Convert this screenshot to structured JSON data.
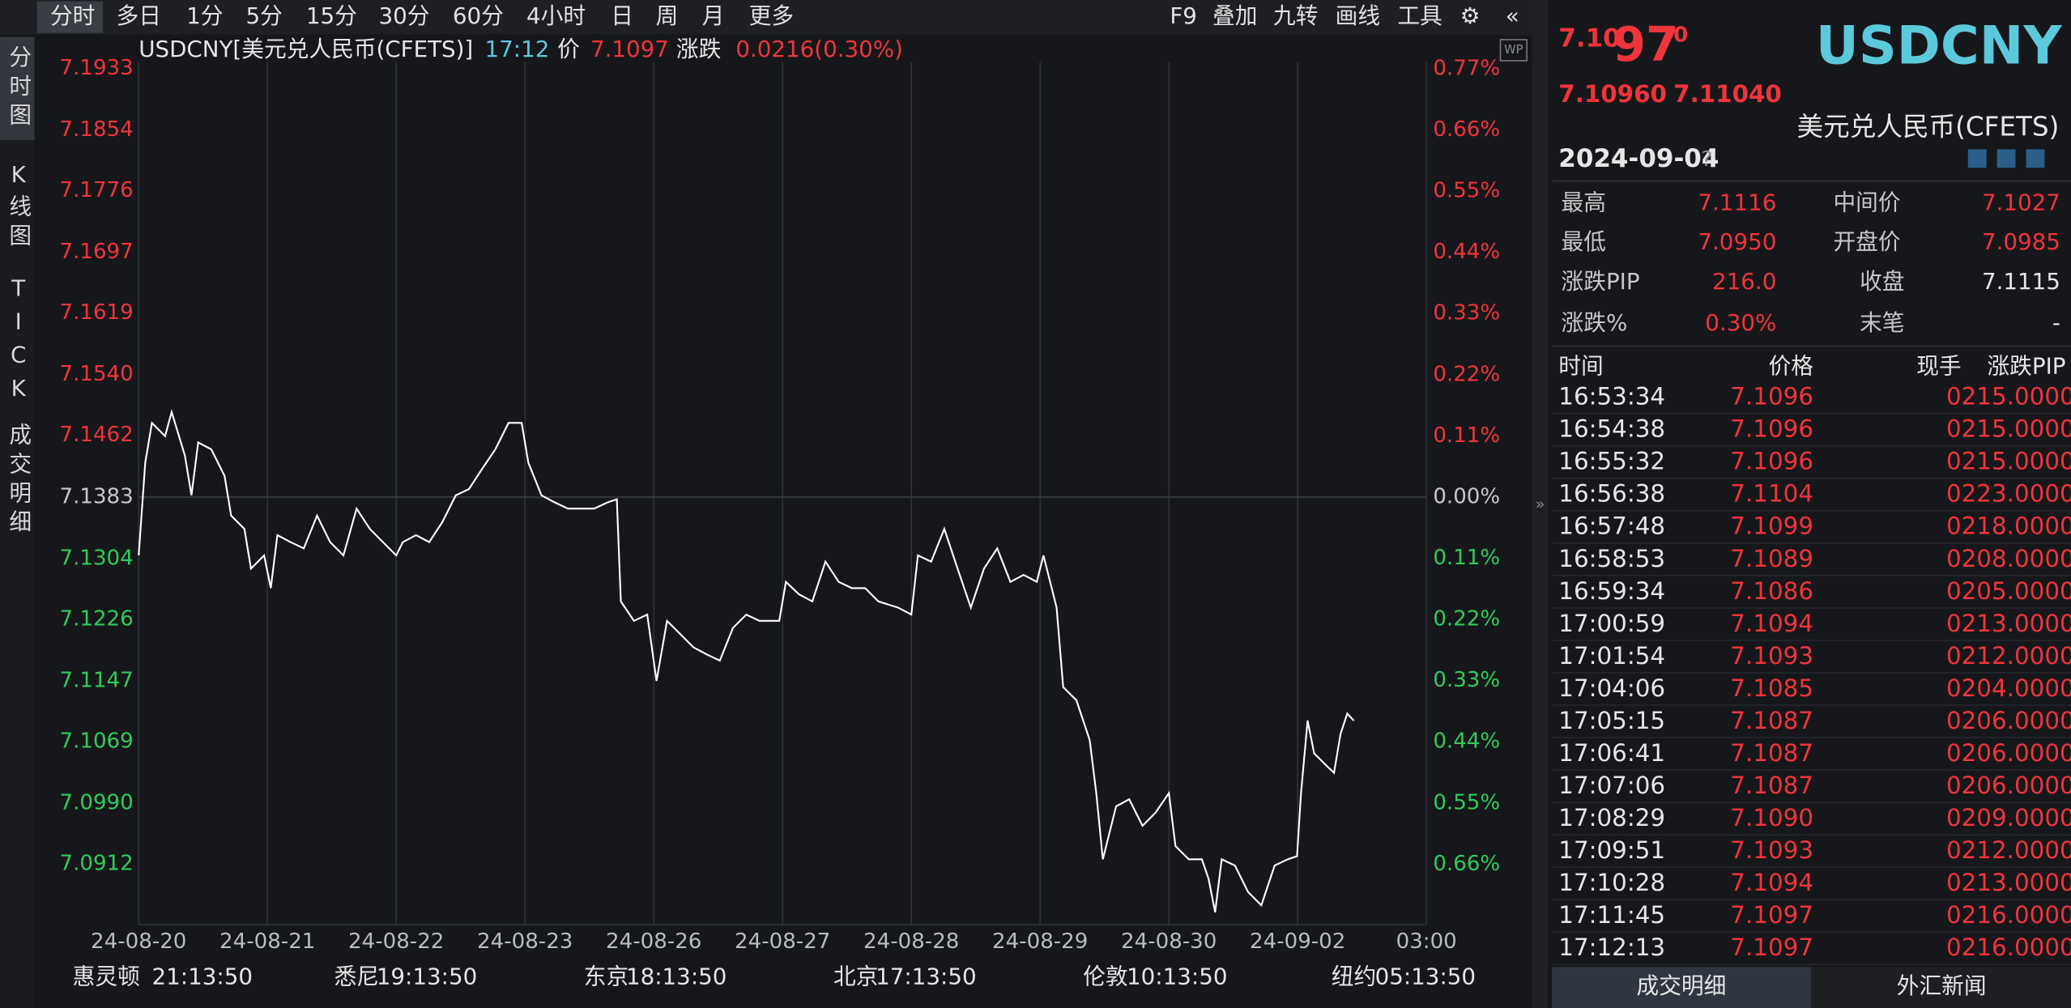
{
  "toolbar": {
    "left": [
      "分时",
      "多日",
      "1分",
      "5分",
      "15分",
      "30分",
      "60分",
      "4小时",
      "日",
      "周",
      "月",
      "更多"
    ],
    "right": [
      "F9",
      "叠加",
      "九转",
      "画线",
      "工具"
    ]
  },
  "side_tabs": [
    "分时图",
    "K线图",
    "TICK",
    "成交明细"
  ],
  "chart_header": {
    "symbol": "USDCNY[美元兑人民币(CFETS)]",
    "time": "17:12",
    "price_label": "价",
    "price": "7.1097",
    "change_label": "涨跌",
    "change": "0.0216(0.30%)"
  },
  "chart_data": {
    "type": "line",
    "up_color": "#f0343c",
    "down_color": "#2ecc5a",
    "flat_color": "#c8c8c8",
    "xlim": [
      0,
      10
    ],
    "xticks": [
      {
        "value": 0,
        "label": "24-08-20"
      },
      {
        "value": 1,
        "label": "24-08-21"
      },
      {
        "value": 2,
        "label": "24-08-22"
      },
      {
        "value": 3,
        "label": "24-08-23"
      },
      {
        "value": 4,
        "label": "24-08-26"
      },
      {
        "value": 5,
        "label": "24-08-27"
      },
      {
        "value": 6,
        "label": "24-08-28"
      },
      {
        "value": 7,
        "label": "24-08-29"
      },
      {
        "value": 8,
        "label": "24-08-30"
      },
      {
        "value": 9,
        "label": "24-09-02"
      },
      {
        "value": 10,
        "label": "03:00"
      }
    ],
    "ylim": [
      7.0834,
      7.1941
    ],
    "yticks": [
      7.1933,
      7.1854,
      7.1776,
      7.1697,
      7.1619,
      {
        "value": 7.154,
        "label": "7.1540"
      },
      7.1462,
      7.1383,
      7.1304,
      7.1226,
      7.1147,
      7.1069,
      {
        "value": 7.099,
        "label": "7.0990"
      },
      7.0912
    ],
    "y2lim": [
      -0.769,
      0.782
    ],
    "y2ticks": [
      {
        "value": 0.77,
        "label": "0.77%"
      },
      {
        "value": 0.66,
        "label": "0.66%"
      },
      {
        "value": 0.55,
        "label": "0.55%"
      },
      {
        "value": 0.44,
        "label": "0.44%"
      },
      {
        "value": 0.33,
        "label": "0.33%"
      },
      {
        "value": 0.22,
        "label": "0.22%"
      },
      {
        "value": 0.11,
        "label": "0.11%"
      },
      {
        "value": 0,
        "label": "0.00%"
      },
      {
        "value": -0.11,
        "label": "0.11%"
      },
      {
        "value": -0.22,
        "label": "0.22%"
      },
      {
        "value": -0.33,
        "label": "0.33%"
      },
      {
        "value": -0.44,
        "label": "0.44%"
      },
      {
        "value": -0.55,
        "label": "0.55%"
      },
      {
        "value": -0.66,
        "label": "0.66%"
      }
    ],
    "grid": true,
    "series": [
      {
        "color": "#ffffff",
        "x": [
          0,
          0.051,
          0.103,
          0.205,
          0.256,
          0.359,
          0.41,
          0.462,
          0.564,
          0.667,
          0.718,
          0.821,
          0.872,
          0.974,
          1.026,
          1.077,
          1.179,
          1.282,
          1.385,
          1.487,
          1.59,
          1.692,
          1.795,
          1.897,
          2.0,
          2.051,
          2.154,
          2.256,
          2.359,
          2.462,
          2.564,
          2.667,
          2.769,
          2.872,
          2.974,
          3.026,
          3.128,
          3.231,
          3.333,
          3.436,
          3.538,
          3.641,
          3.713,
          3.744,
          3.846,
          3.949,
          4.021,
          4.103,
          4.205,
          4.308,
          4.41,
          4.513,
          4.615,
          4.718,
          4.821,
          4.974,
          5.026,
          5.128,
          5.231,
          5.333,
          5.436,
          5.538,
          5.641,
          5.744,
          5.897,
          6.0,
          6.051,
          6.154,
          6.256,
          6.359,
          6.462,
          6.564,
          6.667,
          6.769,
          6.872,
          6.974,
          7.026,
          7.128,
          7.179,
          7.282,
          7.385,
          7.436,
          7.487,
          7.59,
          7.692,
          7.795,
          7.897,
          8.0,
          8.051,
          8.154,
          8.256,
          8.308,
          8.359,
          8.41,
          8.513,
          8.615,
          8.718,
          8.821,
          8.923,
          8.995,
          9.026,
          9.077,
          9.128,
          9.231,
          9.282,
          9.333,
          9.385,
          9.436
        ],
        "values": [
          7.1308,
          7.1427,
          7.1478,
          7.1461,
          7.1492,
          7.1436,
          7.1385,
          7.1453,
          7.1444,
          7.141,
          7.1359,
          7.1342,
          7.1291,
          7.1308,
          7.1266,
          7.1334,
          7.1325,
          7.1317,
          7.1359,
          7.1325,
          7.1308,
          7.1368,
          7.1342,
          7.1325,
          7.1308,
          7.1325,
          7.1334,
          7.1325,
          7.1351,
          7.1385,
          7.1393,
          7.1419,
          7.1444,
          7.1478,
          7.1478,
          7.1427,
          7.1385,
          7.1376,
          7.1368,
          7.1368,
          7.1368,
          7.1376,
          7.138,
          7.1249,
          7.1224,
          7.1232,
          7.1147,
          7.1224,
          7.1207,
          7.119,
          7.1181,
          7.1173,
          7.1215,
          7.1232,
          7.1224,
          7.1224,
          7.1274,
          7.1258,
          7.1249,
          7.13,
          7.1274,
          7.1266,
          7.1266,
          7.1249,
          7.1241,
          7.1232,
          7.1308,
          7.13,
          7.1342,
          7.1291,
          7.1241,
          7.1291,
          7.1317,
          7.1274,
          7.1283,
          7.1274,
          7.1308,
          7.1241,
          7.1139,
          7.1122,
          7.1071,
          7.1003,
          7.0918,
          7.0986,
          7.0995,
          7.0961,
          7.0978,
          7.1003,
          7.0935,
          7.0918,
          7.0918,
          7.0893,
          7.085,
          7.0918,
          7.091,
          7.0876,
          7.0859,
          7.091,
          7.0918,
          7.0922,
          7.1003,
          7.1096,
          7.1054,
          7.1037,
          7.1029,
          7.1079,
          7.1105,
          7.1096
        ]
      }
    ]
  },
  "world_clocks": [
    [
      "惠灵顿",
      "21:13:50"
    ],
    [
      "悉尼",
      "19:13:50"
    ],
    [
      "东京",
      "18:13:50"
    ],
    [
      "北京",
      "17:13:50"
    ],
    [
      "伦敦",
      "10:13:50"
    ],
    [
      "纽约",
      "05:13:50"
    ]
  ],
  "quote": {
    "price_head": "7.10",
    "price_big": "97",
    "price_tail": "0",
    "bid": "7.10960",
    "ask": "7.11040",
    "symbol": "USDCNY",
    "name": "美元兑人民币(CFETS)",
    "date": "2024-09-04",
    "help": "?"
  },
  "stats": [
    [
      "最高",
      "7.1116",
      "中间价",
      "7.1027"
    ],
    [
      "最低",
      "7.0950",
      "开盘价",
      "7.0985"
    ],
    [
      "涨跌PIP",
      "216.0",
      "收盘",
      "7.1115"
    ],
    [
      "涨跌%",
      "0.30%",
      "末笔",
      "-"
    ]
  ],
  "trades": {
    "header": [
      "时间",
      "价格",
      "现手",
      "涨跌PIP"
    ],
    "rows": [
      [
        "16:53:34",
        "7.1096",
        "0",
        "215.0000"
      ],
      [
        "16:54:38",
        "7.1096",
        "0",
        "215.0000"
      ],
      [
        "16:55:32",
        "7.1096",
        "0",
        "215.0000"
      ],
      [
        "16:56:38",
        "7.1104",
        "0",
        "223.0000"
      ],
      [
        "16:57:48",
        "7.1099",
        "0",
        "218.0000"
      ],
      [
        "16:58:53",
        "7.1089",
        "0",
        "208.0000"
      ],
      [
        "16:59:34",
        "7.1086",
        "0",
        "205.0000"
      ],
      [
        "17:00:59",
        "7.1094",
        "0",
        "213.0000"
      ],
      [
        "17:01:54",
        "7.1093",
        "0",
        "212.0000"
      ],
      [
        "17:04:06",
        "7.1085",
        "0",
        "204.0000"
      ],
      [
        "17:05:15",
        "7.1087",
        "0",
        "206.0000"
      ],
      [
        "17:06:41",
        "7.1087",
        "0",
        "206.0000"
      ],
      [
        "17:07:06",
        "7.1087",
        "0",
        "206.0000"
      ],
      [
        "17:08:29",
        "7.1090",
        "0",
        "209.0000"
      ],
      [
        "17:09:51",
        "7.1093",
        "0",
        "212.0000"
      ],
      [
        "17:10:28",
        "7.1094",
        "0",
        "213.0000"
      ],
      [
        "17:11:45",
        "7.1097",
        "0",
        "216.0000"
      ],
      [
        "17:12:13",
        "7.1097",
        "0",
        "216.0000"
      ]
    ]
  },
  "bottom_tabs": [
    "成交明细",
    "外汇新闻"
  ]
}
